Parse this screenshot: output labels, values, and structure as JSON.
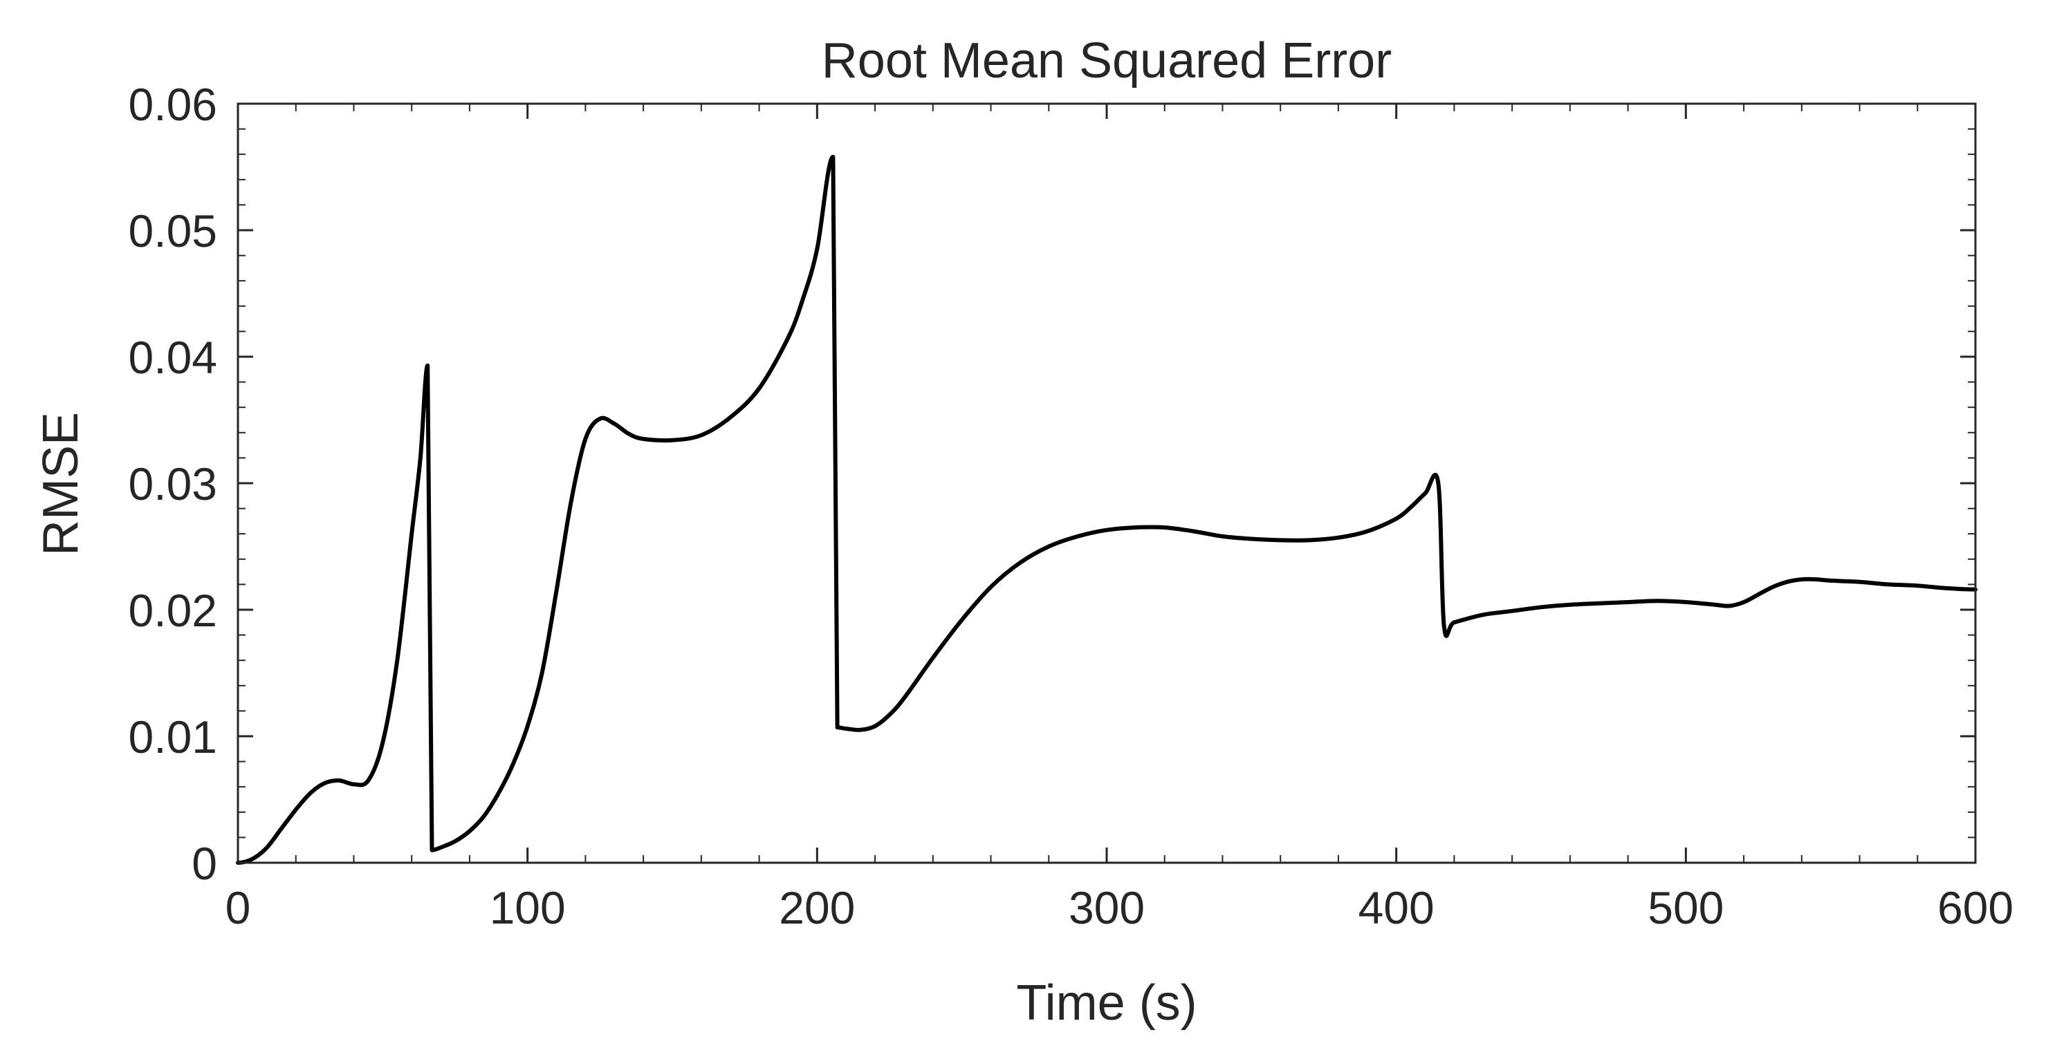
{
  "chart_data": {
    "type": "line",
    "title": "Root Mean Squared Error",
    "xlabel": "Time (s)",
    "ylabel": "RMSE",
    "xlim": [
      0,
      600
    ],
    "ylim": [
      0,
      0.06
    ],
    "xticks": [
      0,
      100,
      200,
      300,
      400,
      500,
      600
    ],
    "xtick_labels": [
      "0",
      "100",
      "200",
      "300",
      "400",
      "500",
      "600"
    ],
    "yticks": [
      0,
      0.01,
      0.02,
      0.03,
      0.04,
      0.05,
      0.06
    ],
    "ytick_labels": [
      "0",
      "0.01",
      "0.02",
      "0.03",
      "0.04",
      "0.05",
      "0.06"
    ],
    "grid": false,
    "series": [
      {
        "color": "#000000",
        "x": [
          0,
          5,
          10,
          15,
          20,
          25,
          30,
          35,
          40,
          45,
          50,
          55,
          60,
          63,
          65.5,
          67,
          70,
          75,
          80,
          85,
          90,
          95,
          100,
          105,
          110,
          115,
          120,
          125,
          130,
          135,
          140,
          150,
          160,
          170,
          180,
          190,
          195,
          200,
          205.5,
          207,
          210,
          215,
          220,
          225,
          230,
          240,
          250,
          260,
          270,
          280,
          290,
          300,
          310,
          320,
          330,
          340,
          350,
          360,
          370,
          380,
          390,
          400,
          405,
          410,
          414.5,
          416.5,
          420,
          430,
          440,
          450,
          460,
          470,
          480,
          490,
          500,
          510,
          515,
          520,
          525,
          530,
          535,
          540,
          545,
          550,
          560,
          570,
          580,
          590,
          600
        ],
        "y": [
          0.0,
          0.0003,
          0.0012,
          0.0027,
          0.0042,
          0.0055,
          0.0063,
          0.0065,
          0.0062,
          0.0065,
          0.0095,
          0.016,
          0.026,
          0.032,
          0.0393,
          0.001,
          0.0012,
          0.0017,
          0.0025,
          0.0037,
          0.0055,
          0.0078,
          0.0108,
          0.015,
          0.0215,
          0.0285,
          0.0335,
          0.0351,
          0.0347,
          0.0339,
          0.0335,
          0.0334,
          0.0338,
          0.0352,
          0.0375,
          0.0415,
          0.0445,
          0.0485,
          0.0558,
          0.0107,
          0.0106,
          0.0105,
          0.0108,
          0.0117,
          0.013,
          0.0162,
          0.0192,
          0.0218,
          0.0237,
          0.025,
          0.0258,
          0.0263,
          0.0265,
          0.0265,
          0.0262,
          0.0258,
          0.0256,
          0.0255,
          0.0255,
          0.0257,
          0.0262,
          0.0272,
          0.0281,
          0.0292,
          0.03,
          0.0187,
          0.019,
          0.0196,
          0.0199,
          0.0202,
          0.0204,
          0.0205,
          0.0206,
          0.0207,
          0.0206,
          0.0204,
          0.0203,
          0.0206,
          0.0212,
          0.0218,
          0.0222,
          0.0224,
          0.0224,
          0.0223,
          0.0222,
          0.022,
          0.0219,
          0.0217,
          0.0216
        ]
      }
    ]
  }
}
